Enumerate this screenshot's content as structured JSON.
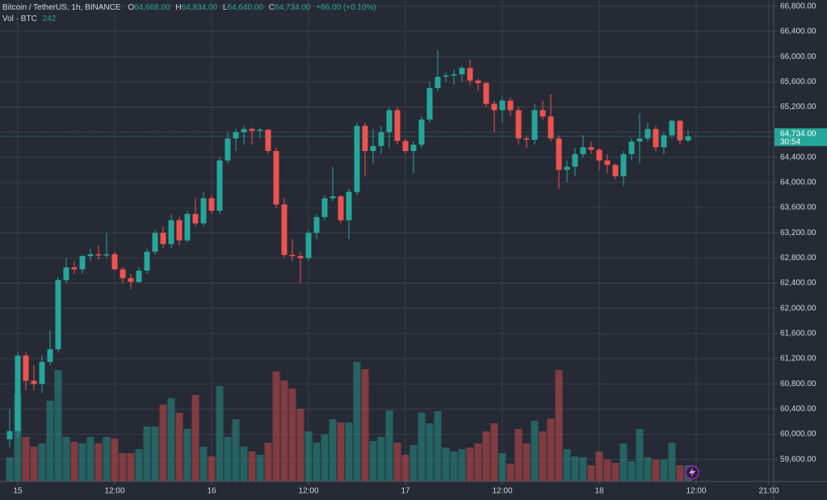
{
  "chart_data": {
    "type": "candlestick",
    "legend": {
      "title": "Bitcoin / TetherUS, 1h, BINANCE",
      "o_label": "O",
      "o": "64,668.00",
      "h_label": "H",
      "h": "64,834.00",
      "l_label": "L",
      "l": "64,640.00",
      "c_label": "C",
      "c": "64,734.00",
      "change": "+66.00 (+0.10%)",
      "vol_label": "Vol · BTC",
      "vol": "242"
    },
    "last_price_label": "64,734.00",
    "countdown": "30:54",
    "up_color": "#26a69a",
    "down_color": "#ef5350",
    "grid": true,
    "x": [
      -1,
      0,
      1,
      2,
      3,
      4,
      5,
      6,
      7,
      8,
      9,
      10,
      11,
      12,
      13,
      14,
      15,
      16,
      17,
      18,
      19,
      20,
      21,
      22,
      23,
      24,
      25,
      26,
      27,
      28,
      29,
      30,
      31,
      32,
      33,
      34,
      35,
      36,
      37,
      38,
      39,
      40,
      41,
      42,
      43,
      44,
      45,
      46,
      47,
      48,
      49,
      50,
      51,
      52,
      53,
      54,
      55,
      56,
      57,
      58,
      59,
      60,
      61,
      62,
      63,
      64,
      65,
      66,
      67,
      68,
      69,
      70,
      71,
      72,
      73,
      74,
      75,
      76,
      77,
      78,
      79,
      80,
      81,
      82,
      83
    ],
    "open": [
      59920,
      60050,
      61250,
      60850,
      60800,
      61150,
      61350,
      62450,
      62650,
      62620,
      62830,
      62860,
      62840,
      62860,
      62620,
      62480,
      62420,
      62600,
      62900,
      63200,
      63020,
      63400,
      63080,
      63500,
      63350,
      63750,
      63550,
      64350,
      64700,
      64800,
      64850,
      64820,
      64840,
      64500,
      63650,
      62850,
      62830,
      62800,
      63200,
      63450,
      63750,
      63780,
      63400,
      63850,
      64900,
      64500,
      64580,
      64800,
      65150,
      64660,
      64500,
      64600,
      65000,
      65500,
      65680,
      65700,
      65720,
      65820,
      65620,
      65580,
      65250,
      65150,
      65300,
      65150,
      64700,
      64680,
      65150,
      65050,
      64700,
      64200,
      64250,
      64450,
      64560,
      64520,
      64350,
      64280,
      64100,
      64450,
      64650,
      64700,
      64850,
      64560,
      64750,
      64980,
      64668
    ],
    "high": [
      60400,
      61300,
      61300,
      61100,
      61250,
      61650,
      62500,
      62800,
      62750,
      62850,
      62950,
      63000,
      63200,
      62900,
      62650,
      62550,
      62650,
      62950,
      63250,
      63300,
      63500,
      63450,
      63550,
      63750,
      63850,
      63800,
      64400,
      64800,
      64850,
      64900,
      64870,
      64870,
      64850,
      64550,
      63750,
      63100,
      62900,
      63250,
      63500,
      63800,
      64250,
      63800,
      63900,
      64950,
      64950,
      64850,
      64900,
      65200,
      65200,
      64700,
      64650,
      65050,
      65600,
      66100,
      65750,
      65800,
      65850,
      65950,
      65650,
      65600,
      65300,
      65350,
      65350,
      65200,
      64750,
      65250,
      65300,
      65400,
      64750,
      64350,
      64550,
      64750,
      64650,
      64550,
      64450,
      64300,
      64500,
      64700,
      65100,
      64950,
      64900,
      64800,
      65000,
      65000,
      64834
    ],
    "low": [
      59800,
      59950,
      60700,
      60700,
      60650,
      61100,
      61300,
      62400,
      62550,
      62550,
      62750,
      62780,
      62800,
      62600,
      62400,
      62300,
      62400,
      62550,
      62850,
      62950,
      62950,
      63000,
      63050,
      63300,
      63300,
      63500,
      63500,
      64300,
      64500,
      64600,
      64600,
      64700,
      64450,
      63600,
      62800,
      62750,
      62400,
      62750,
      63100,
      63400,
      63700,
      63350,
      63100,
      63800,
      64100,
      64300,
      64450,
      64550,
      64600,
      64450,
      64150,
      64550,
      64950,
      65450,
      65600,
      65550,
      65600,
      65550,
      65450,
      65200,
      64800,
      64950,
      65050,
      64600,
      64550,
      64600,
      65000,
      64650,
      63900,
      64000,
      64100,
      64400,
      64450,
      64200,
      64150,
      64050,
      63950,
      64350,
      64300,
      64650,
      64500,
      64450,
      64700,
      64600,
      64640
    ],
    "close": [
      60050,
      61250,
      60850,
      60800,
      61150,
      61350,
      62450,
      62650,
      62620,
      62830,
      62860,
      62840,
      62860,
      62620,
      62480,
      62420,
      62600,
      62900,
      63200,
      63020,
      63400,
      63080,
      63500,
      63350,
      63750,
      63550,
      64350,
      64700,
      64800,
      64850,
      64820,
      64840,
      64500,
      63650,
      62850,
      62830,
      62800,
      63200,
      63450,
      63750,
      63780,
      63400,
      63850,
      64900,
      64500,
      64580,
      64800,
      65150,
      64660,
      64500,
      64600,
      65000,
      65500,
      65680,
      65700,
      65720,
      65820,
      65620,
      65580,
      65250,
      65150,
      65300,
      65150,
      64700,
      64680,
      65150,
      65050,
      64700,
      64200,
      64250,
      64450,
      64560,
      64520,
      64350,
      64280,
      64100,
      64450,
      64650,
      64700,
      64850,
      64560,
      64750,
      64980,
      64668,
      64734
    ],
    "volume": [
      363,
      1307,
      666,
      520,
      569,
      1210,
      1670,
      666,
      593,
      569,
      666,
      569,
      666,
      641,
      424,
      424,
      484,
      823,
      823,
      1150,
      1246,
      1029,
      787,
      1295,
      520,
      375,
      1428,
      666,
      932,
      520,
      448,
      399,
      581,
      1646,
      1513,
      1392,
      1089,
      750,
      581,
      702,
      932,
      883,
      883,
      1791,
      1682,
      605,
      666,
      1065,
      581,
      399,
      545,
      1029,
      871,
      1053,
      508,
      448,
      484,
      508,
      569,
      750,
      871,
      424,
      266,
      787,
      569,
      908,
      750,
      944,
      1670,
      484,
      375,
      363,
      242,
      448,
      327,
      278,
      569,
      303,
      787,
      363,
      327,
      327,
      581,
      242,
      242
    ],
    "xlim": [
      -2.2,
      93.6
    ],
    "xticks": [
      {
        "value": 0,
        "label": "15"
      },
      {
        "value": 12,
        "label": "12:00"
      },
      {
        "value": 24,
        "label": "16"
      },
      {
        "value": 36,
        "label": "12:00"
      },
      {
        "value": 48,
        "label": "17"
      },
      {
        "value": 60,
        "label": "12:00"
      },
      {
        "value": 72,
        "label": "18"
      },
      {
        "value": 84,
        "label": "12:00"
      },
      {
        "value": 93,
        "label": "21:00"
      }
    ],
    "ylim": [
      59250,
      66900
    ],
    "yticks": [
      {
        "value": 59600,
        "label": "59,600.00"
      },
      {
        "value": 60000,
        "label": "60,000.00"
      },
      {
        "value": 60400,
        "label": "60,400.00"
      },
      {
        "value": 60800,
        "label": "60,800.00"
      },
      {
        "value": 61200,
        "label": "61,200.00"
      },
      {
        "value": 61600,
        "label": "61,600.00"
      },
      {
        "value": 62000,
        "label": "62,000.00"
      },
      {
        "value": 62400,
        "label": "62,400.00"
      },
      {
        "value": 62800,
        "label": "62,800.00"
      },
      {
        "value": 63200,
        "label": "63,200.00"
      },
      {
        "value": 63600,
        "label": "63,600.00"
      },
      {
        "value": 64000,
        "label": "64,000.00"
      },
      {
        "value": 64400,
        "label": "64,400.00"
      },
      {
        "value": 64800,
        "label": "64,800.00"
      },
      {
        "value": 65200,
        "label": "65,200.00"
      },
      {
        "value": 65600,
        "label": "65,600.00"
      },
      {
        "value": 66000,
        "label": "66,000.00"
      },
      {
        "value": 66400,
        "label": "66,400.00"
      },
      {
        "value": 66800,
        "label": "66,800.00"
      }
    ]
  }
}
